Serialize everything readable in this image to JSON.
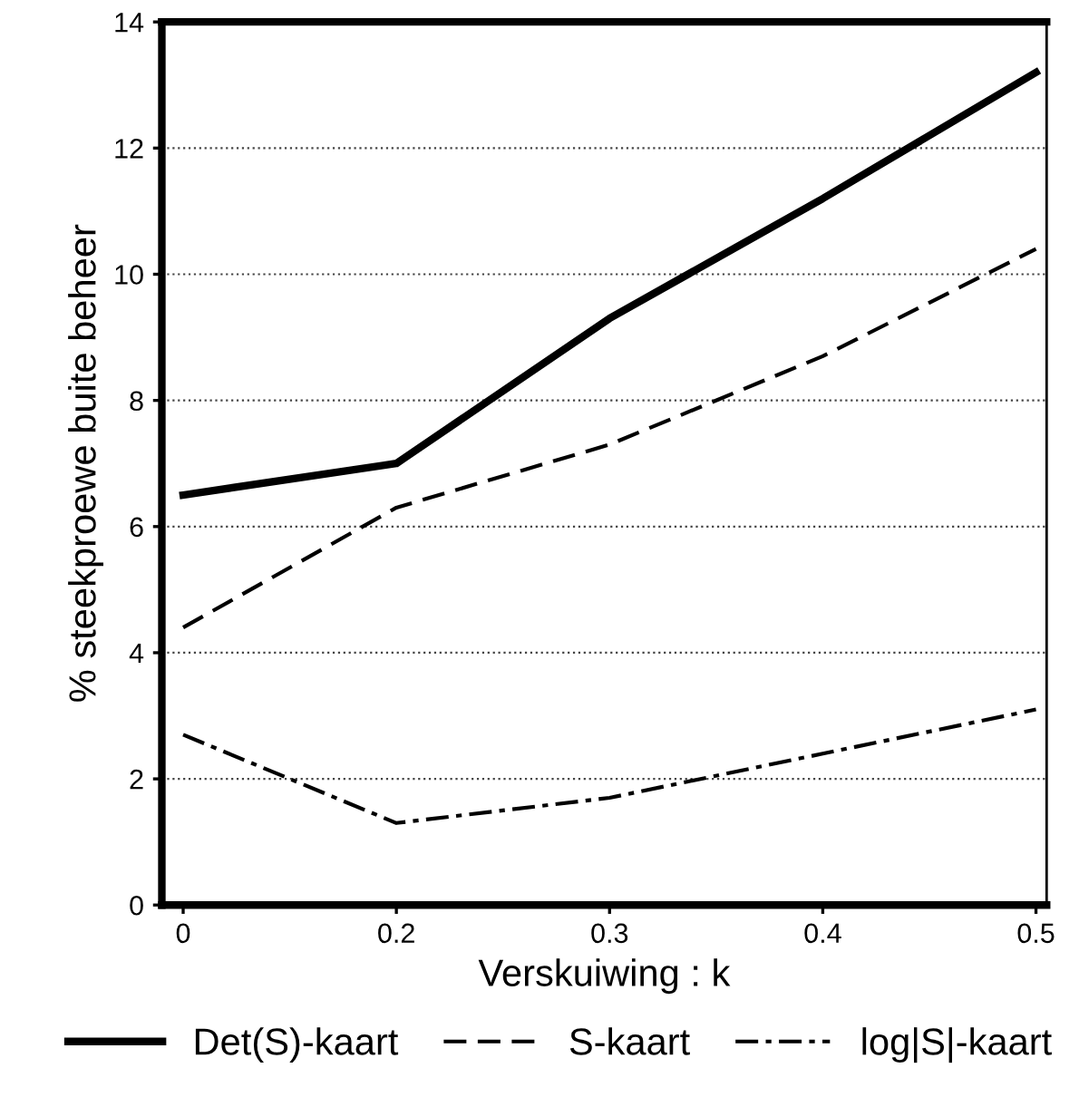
{
  "chart_data": {
    "type": "line",
    "xlabel": "Verskuiwing : k",
    "ylabel": "% steekproewe buite beheer",
    "categories": [
      "0",
      "0.2",
      "0.3",
      "0.4",
      "0.5"
    ],
    "series": [
      {
        "name": "Det(S)-kaart",
        "color": "#000000",
        "line_style": "solid",
        "values": [
          6.5,
          7.0,
          9.3,
          11.2,
          13.2
        ]
      },
      {
        "name": "S-kaart",
        "color": "#000000",
        "line_style": "dashed",
        "values": [
          4.4,
          6.3,
          7.3,
          8.7,
          10.4
        ]
      },
      {
        "name": "log|S|-kaart",
        "color": "#000000",
        "line_style": "dashdot",
        "values": [
          2.7,
          1.3,
          1.7,
          2.4,
          3.1
        ]
      }
    ],
    "ylim": [
      0,
      14
    ],
    "yticks": [
      0,
      2,
      4,
      6,
      8,
      10,
      12,
      14
    ],
    "grid": "y",
    "legend": "bottom",
    "marker": "none"
  }
}
